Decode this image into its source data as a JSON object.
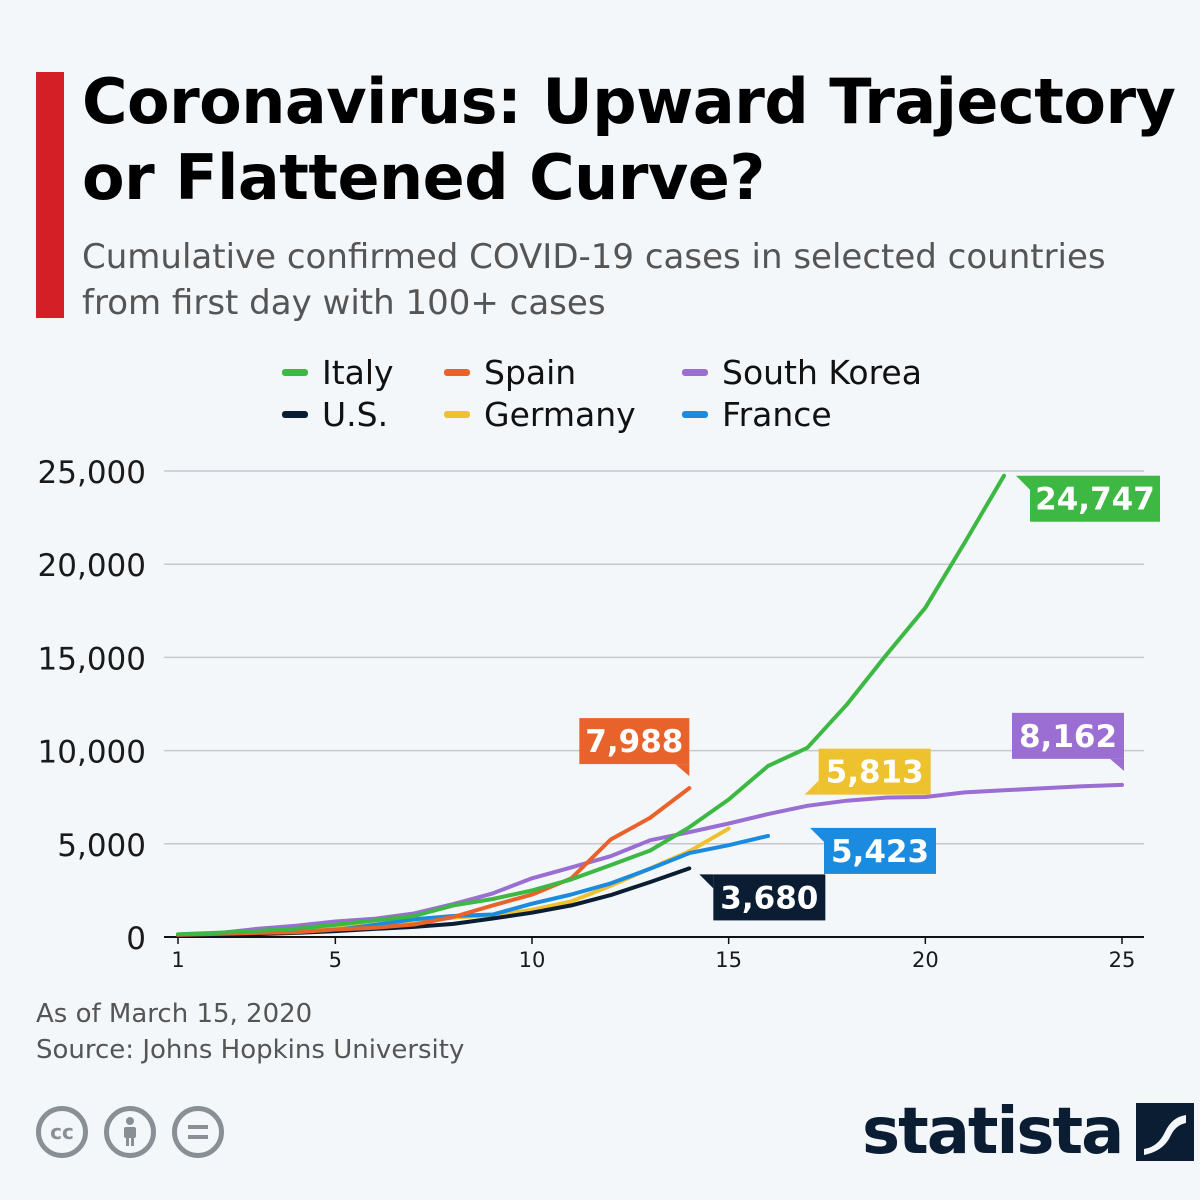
{
  "header": {
    "title": "Coronavirus: Upward Trajectory or Flattened Curve?",
    "subtitle": "Cumulative confirmed COVID-19 cases in selected countries from first day with 100+ cases"
  },
  "footer": {
    "as_of": "As of March 15, 2020",
    "source": "Source: Johns Hopkins University"
  },
  "brand": {
    "logo_text": "statista",
    "color": "#0b1d33"
  },
  "license_icons": [
    "creative-commons-icon",
    "attribution-icon",
    "no-derivatives-icon"
  ],
  "chart_data": {
    "type": "line",
    "title": "Coronavirus: Upward Trajectory or Flattened Curve?",
    "xlabel": "",
    "ylabel": "",
    "xlim": [
      1,
      25
    ],
    "ylim": [
      0,
      25000
    ],
    "x_ticks": [
      1,
      5,
      10,
      15,
      20,
      25
    ],
    "y_ticks": [
      0,
      5000,
      10000,
      15000,
      20000,
      25000
    ],
    "y_tick_labels": [
      "0",
      "5,000",
      "10,000",
      "15,000",
      "20,000",
      "25,000"
    ],
    "grid": true,
    "legend_position": "top",
    "series": [
      {
        "name": "Italy",
        "color": "#3cb843",
        "end_label": "24,747",
        "x": [
          1,
          2,
          3,
          4,
          5,
          6,
          7,
          8,
          9,
          10,
          11,
          12,
          13,
          14,
          15,
          16,
          17,
          18,
          19,
          20,
          21,
          22
        ],
        "values": [
          150,
          229,
          322,
          453,
          655,
          888,
          1128,
          1694,
          2036,
          2502,
          3089,
          3858,
          4636,
          5883,
          7375,
          9172,
          10149,
          12462,
          15113,
          17660,
          21157,
          24747
        ]
      },
      {
        "name": "Spain",
        "color": "#e8632c",
        "end_label": "7,988",
        "x": [
          1,
          2,
          3,
          4,
          5,
          6,
          7,
          8,
          9,
          10,
          11,
          12,
          13,
          14
        ],
        "values": [
          120,
          165,
          222,
          259,
          400,
          500,
          673,
          1073,
          1695,
          2277,
          3146,
          5232,
          6391,
          7988
        ]
      },
      {
        "name": "South Korea",
        "color": "#9a6ed2",
        "end_label": "8,162",
        "x": [
          1,
          2,
          3,
          4,
          5,
          6,
          7,
          8,
          9,
          10,
          11,
          12,
          13,
          14,
          15,
          16,
          17,
          18,
          19,
          20,
          21,
          22,
          23,
          24,
          25
        ],
        "values": [
          104,
          204,
          433,
          602,
          833,
          977,
          1261,
          1766,
          2337,
          3150,
          3736,
          4335,
          5186,
          5621,
          6088,
          6593,
          7041,
          7314,
          7478,
          7513,
          7755,
          7869,
          7979,
          8086,
          8162
        ]
      },
      {
        "name": "U.S.",
        "color": "#0b1d33",
        "end_label": "3,680",
        "x": [
          1,
          2,
          3,
          4,
          5,
          6,
          7,
          8,
          9,
          10,
          11,
          12,
          13,
          14
        ],
        "values": [
          100,
          124,
          158,
          221,
          319,
          435,
          541,
          704,
          994,
          1301,
          1697,
          2247,
          2943,
          3680
        ]
      },
      {
        "name": "Germany",
        "color": "#eec12f",
        "end_label": "5,813",
        "x": [
          1,
          2,
          3,
          4,
          5,
          6,
          7,
          8,
          9,
          10,
          11,
          12,
          13,
          14,
          15
        ],
        "values": [
          130,
          159,
          196,
          262,
          482,
          670,
          799,
          1040,
          1176,
          1457,
          1908,
          2745,
          3675,
          4599,
          5813
        ]
      },
      {
        "name": "France",
        "color": "#1b8be0",
        "end_label": "5,423",
        "x": [
          1,
          2,
          3,
          4,
          5,
          6,
          7,
          8,
          9,
          10,
          11,
          12,
          13,
          14,
          15,
          16
        ],
        "values": [
          130,
          191,
          204,
          285,
          377,
          653,
          949,
          1126,
          1209,
          1784,
          2281,
          2876,
          3661,
          4499,
          4923,
          5423
        ]
      }
    ]
  }
}
